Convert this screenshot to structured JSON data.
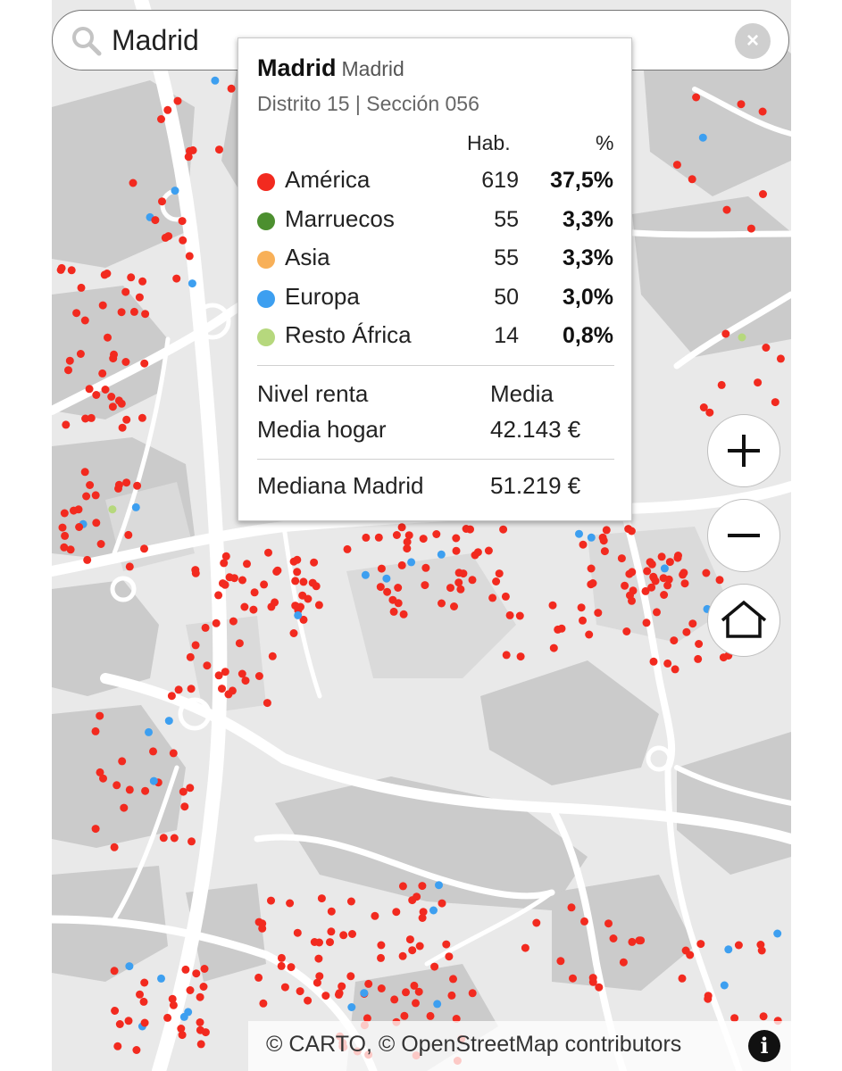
{
  "search": {
    "value": "Madrid",
    "clear_label": "×"
  },
  "popup": {
    "title": "Madrid",
    "subtitle": "Madrid",
    "section": "Distrito 15 | Sección 056",
    "col_hab": "Hab.",
    "col_pct": "%",
    "rows": [
      {
        "name": "América",
        "hab": "619",
        "pct": "37,5%",
        "color": "#f22a1f"
      },
      {
        "name": "Marruecos",
        "hab": "55",
        "pct": "3,3%",
        "color": "#4c8f2f"
      },
      {
        "name": "Asia",
        "hab": "55",
        "pct": "3,3%",
        "color": "#f8b058"
      },
      {
        "name": "Europa",
        "hab": "50",
        "pct": "3,0%",
        "color": "#3d9ff0"
      },
      {
        "name": "Resto África",
        "hab": "14",
        "pct": "0,8%",
        "color": "#b6d87d"
      }
    ],
    "income_label": "Nivel renta",
    "income_value": "Media",
    "household_label": "Media hogar",
    "household_value": "42.143 €",
    "median_label": "Mediana Madrid",
    "median_value": "51.219 €"
  },
  "controls": {
    "zoom_in": "zoom-in",
    "zoom_out": "zoom-out",
    "home": "home"
  },
  "attribution": {
    "text": "© CARTO, © OpenStreetMap contributors",
    "info_label": "i"
  },
  "colors": {
    "america": "#f22a1f",
    "europa": "#3d9ff0",
    "marruecos": "#4c8f2f",
    "asia": "#f8b058",
    "resto_africa": "#b6d87d",
    "map_bg": "#e9e9e9",
    "block": "#c9c9c9",
    "road": "#ffffff"
  }
}
